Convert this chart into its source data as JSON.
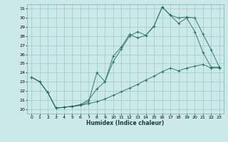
{
  "xlabel": "Humidex (Indice chaleur)",
  "background_color": "#cce9e9",
  "grid_color": "#a0c8c8",
  "line_color": "#1a6b5a",
  "xlim": [
    -0.5,
    23.5
  ],
  "ylim": [
    19.5,
    31.5
  ],
  "xticks": [
    0,
    1,
    2,
    3,
    4,
    5,
    6,
    7,
    8,
    9,
    10,
    11,
    12,
    13,
    14,
    15,
    16,
    17,
    18,
    19,
    20,
    21,
    22,
    23
  ],
  "yticks": [
    20,
    21,
    22,
    23,
    24,
    25,
    26,
    27,
    28,
    29,
    30,
    31
  ],
  "curve1_x": [
    0,
    1,
    2,
    3,
    4,
    5,
    6,
    7,
    8,
    9,
    10,
    11,
    12,
    13,
    14,
    15,
    16,
    17,
    18,
    19,
    20,
    21,
    22,
    23
  ],
  "curve1_y": [
    23.5,
    23.0,
    21.8,
    20.1,
    20.2,
    20.3,
    20.4,
    20.8,
    24.0,
    23.0,
    25.8,
    26.8,
    28.2,
    27.8,
    28.1,
    29.1,
    31.2,
    30.3,
    29.4,
    30.0,
    28.5,
    26.2,
    24.6,
    24.6
  ],
  "curve2_x": [
    0,
    1,
    2,
    3,
    4,
    5,
    6,
    7,
    8,
    9,
    10,
    11,
    12,
    13,
    14,
    15,
    16,
    17,
    18,
    19,
    20,
    21,
    22,
    23
  ],
  "curve2_y": [
    23.5,
    23.0,
    21.8,
    20.1,
    20.2,
    20.3,
    20.5,
    21.0,
    22.2,
    23.0,
    25.2,
    26.6,
    28.0,
    28.5,
    28.1,
    29.1,
    31.2,
    30.3,
    30.0,
    30.1,
    30.0,
    28.2,
    26.5,
    24.6
  ],
  "curve3_x": [
    0,
    1,
    2,
    3,
    4,
    5,
    6,
    7,
    8,
    9,
    10,
    11,
    12,
    13,
    14,
    15,
    16,
    17,
    18,
    19,
    20,
    21,
    22,
    23
  ],
  "curve3_y": [
    23.5,
    23.0,
    21.8,
    20.1,
    20.2,
    20.3,
    20.4,
    20.6,
    20.8,
    21.1,
    21.5,
    21.9,
    22.3,
    22.7,
    23.2,
    23.6,
    24.1,
    24.5,
    24.2,
    24.5,
    24.7,
    24.9,
    24.5,
    24.5
  ]
}
